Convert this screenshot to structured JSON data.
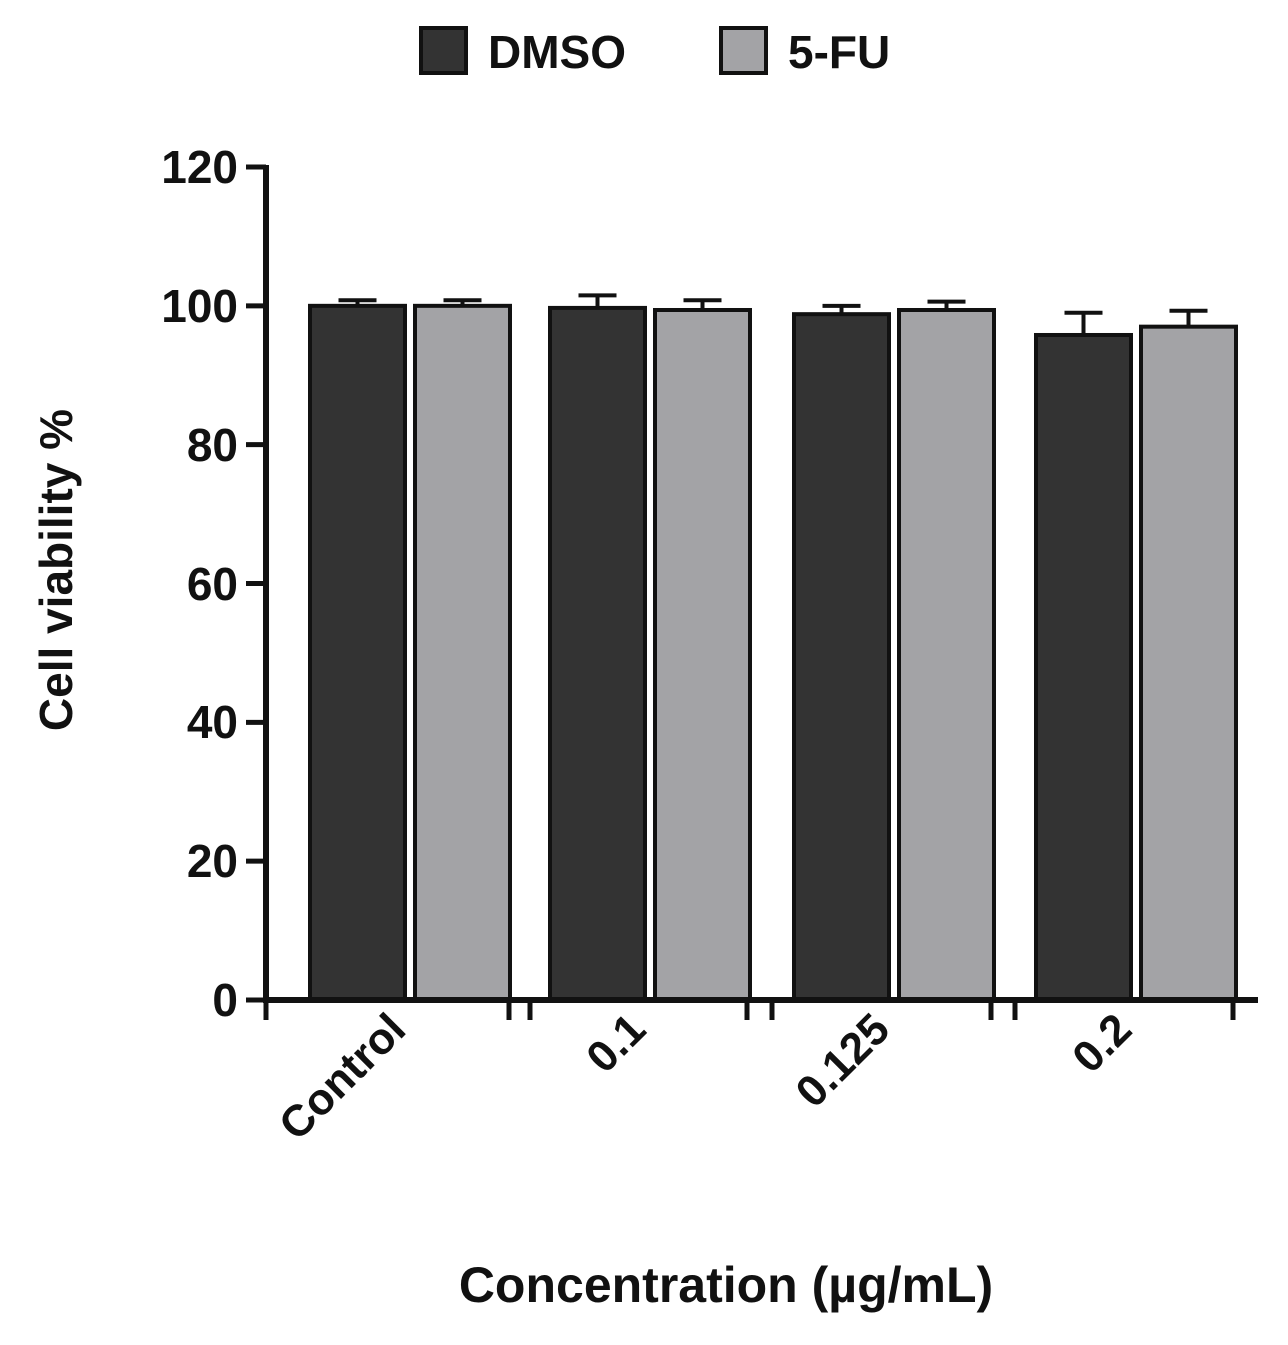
{
  "chart_data": {
    "type": "bar",
    "title": "",
    "xlabel": "Concentration (µg/mL)",
    "ylabel": "Cell viability %",
    "categories": [
      "Control",
      "0.1",
      "0.125",
      "0.2"
    ],
    "ylim": [
      0,
      120
    ],
    "yticks": [
      "0",
      "20",
      "40",
      "60",
      "80",
      "100",
      "120"
    ],
    "legend_position": "top-center",
    "grid": false,
    "series": [
      {
        "name": "DMSO",
        "color": "#333333",
        "values": [
          100,
          99.7,
          98.8,
          95.8
        ],
        "errors": [
          0.8,
          1.8,
          1.2,
          3.2
        ]
      },
      {
        "name": "5-FU",
        "color": "#a3a3a6",
        "values": [
          100,
          99.4,
          99.4,
          97.0
        ],
        "errors": [
          0.8,
          1.4,
          1.2,
          2.3
        ]
      }
    ]
  }
}
